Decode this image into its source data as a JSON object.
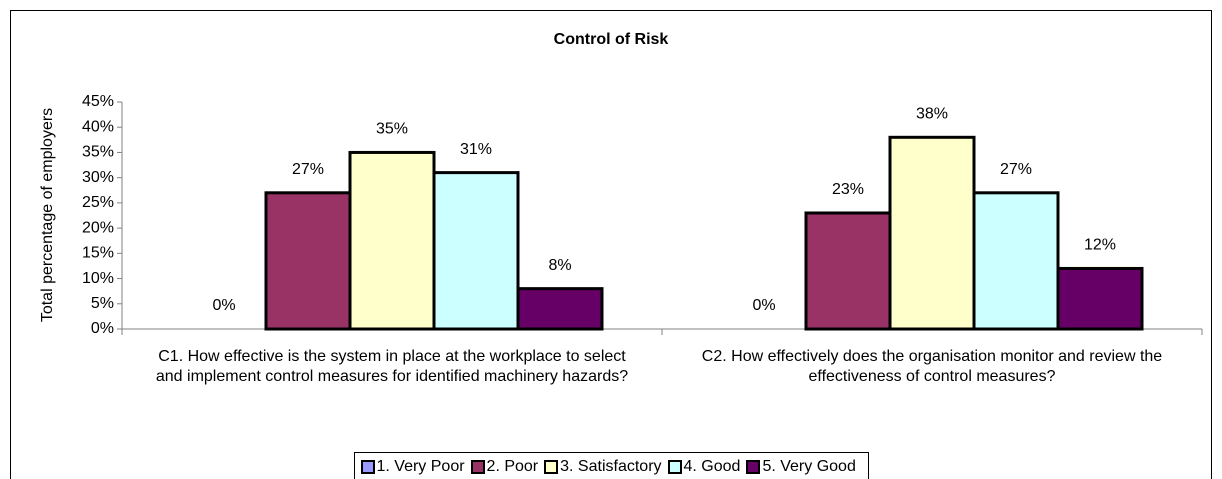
{
  "chart_data": {
    "type": "bar",
    "title": "Control of Risk",
    "y_label": "Total percentage of employers",
    "categories": [
      "C1. How effective is the system in place at the workplace to select and implement control measures for identified machinery hazards?",
      "C2. How effectively does the organisation monitor and review the effectiveness of control measures?"
    ],
    "series": [
      {
        "name": "1. Very Poor",
        "color": "#9999ff",
        "values": [
          0,
          0
        ],
        "value_labels": [
          "0%",
          "0%"
        ]
      },
      {
        "name": "2. Poor",
        "color": "#993366",
        "values": [
          27,
          23
        ],
        "value_labels": [
          "27%",
          "23%"
        ]
      },
      {
        "name": "3. Satisfactory",
        "color": "#ffffcc",
        "values": [
          35,
          38
        ],
        "value_labels": [
          "35%",
          "38%"
        ]
      },
      {
        "name": "4. Good",
        "color": "#ccffff",
        "values": [
          31,
          27
        ],
        "value_labels": [
          "31%",
          "27%"
        ]
      },
      {
        "name": "5. Very Good",
        "color": "#660066",
        "values": [
          8,
          12
        ],
        "value_labels": [
          "8%",
          "12%"
        ]
      }
    ],
    "ylim": [
      0,
      45
    ],
    "yticks": [
      {
        "value": 0,
        "label": "0%"
      },
      {
        "value": 5,
        "label": "5%"
      },
      {
        "value": 10,
        "label": "10%"
      },
      {
        "value": 15,
        "label": "15%"
      },
      {
        "value": 20,
        "label": "20%"
      },
      {
        "value": 25,
        "label": "25%"
      },
      {
        "value": 30,
        "label": "30%"
      },
      {
        "value": 35,
        "label": "35%"
      },
      {
        "value": 40,
        "label": "40%"
      },
      {
        "value": 45,
        "label": "45%"
      }
    ],
    "legend": "bottom",
    "grid": false
  }
}
